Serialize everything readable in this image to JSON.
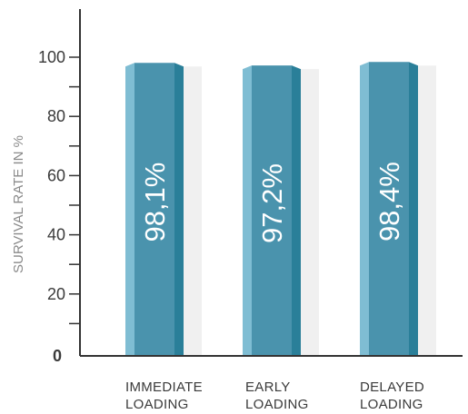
{
  "chart_data": {
    "type": "bar",
    "title": "",
    "xlabel": "",
    "ylabel": "SURVIVAL RATE IN %",
    "categories": [
      [
        "IMMEDIATE",
        "LOADING"
      ],
      [
        "EARLY",
        "LOADING"
      ],
      [
        "DELAYED",
        "LOADING"
      ]
    ],
    "values": [
      98.1,
      97.2,
      98.4
    ],
    "data_labels": [
      "98,1%",
      "97,2%",
      "98,4%"
    ],
    "ylim": [
      0,
      110
    ],
    "yticks": [
      0,
      20,
      40,
      60,
      80,
      100
    ],
    "yticks_minor": [
      10,
      30,
      50,
      70,
      90
    ],
    "grid": false,
    "colors": {
      "bar_main": "#4a93ad",
      "bar_left": "#7fbdd3",
      "bar_right": "#2a7f99",
      "shadow": "#e6e6e6",
      "axis": "#333333"
    }
  }
}
